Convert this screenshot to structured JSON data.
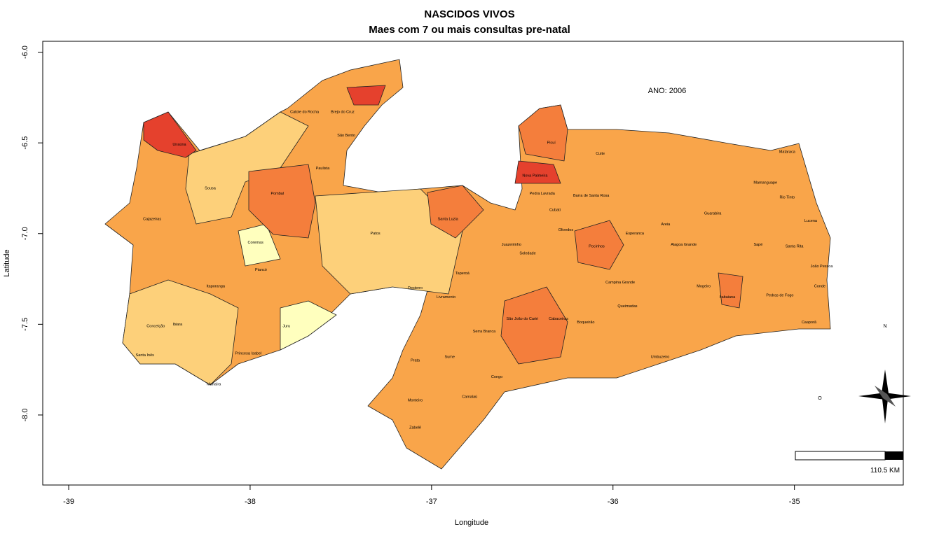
{
  "chart_data": {
    "type": "map",
    "title": "NASCIDOS VIVOS",
    "subtitle": "Maes com 7 ou mais consultas pre-natal",
    "x_label": "Longitude",
    "y_label": "Latitude",
    "xlim": [
      -39.143,
      -34.4
    ],
    "ylim": [
      -8.386,
      -5.94
    ],
    "xticks": [
      -39,
      -38,
      -37,
      -36,
      -35
    ],
    "yticks": [
      {
        "value": -6,
        "label": "-6.0"
      },
      {
        "value": -6.5,
        "label": "-6.5"
      },
      {
        "value": -7,
        "label": "-7.0"
      },
      {
        "value": -7.5,
        "label": "-7.5"
      },
      {
        "value": -8,
        "label": "-8.0"
      }
    ],
    "annotation": "ANO: 2006",
    "scale_label": "110.5 KM",
    "compass_n": "N",
    "compass_o": "O",
    "places": [
      {
        "name": "Sousa",
        "lon": -38.22,
        "lat": -6.75
      },
      {
        "name": "Cajazeiras",
        "lon": -38.54,
        "lat": -6.92
      },
      {
        "name": "Pombal",
        "lon": -37.85,
        "lat": -6.78
      },
      {
        "name": "Patos",
        "lon": -37.31,
        "lat": -7.0
      },
      {
        "name": "Catole do Rocha",
        "lon": -37.7,
        "lat": -6.33
      },
      {
        "name": "Paulista",
        "lon": -37.6,
        "lat": -6.64
      },
      {
        "name": "Princesa Isabel",
        "lon": -38.01,
        "lat": -7.66
      },
      {
        "name": "Itaporanga",
        "lon": -38.19,
        "lat": -7.29
      },
      {
        "name": "Conceição",
        "lon": -38.52,
        "lat": -7.51
      },
      {
        "name": "Piancó",
        "lon": -37.94,
        "lat": -7.2
      },
      {
        "name": "Juru",
        "lon": -37.8,
        "lat": -7.51
      },
      {
        "name": "Taperoá",
        "lon": -36.83,
        "lat": -7.22
      },
      {
        "name": "Monteiro",
        "lon": -37.09,
        "lat": -7.92
      },
      {
        "name": "Sume",
        "lon": -36.9,
        "lat": -7.68
      },
      {
        "name": "Serra Branca",
        "lon": -36.71,
        "lat": -7.54
      },
      {
        "name": "Congo",
        "lon": -36.64,
        "lat": -7.79
      },
      {
        "name": "Camalaú",
        "lon": -36.79,
        "lat": -7.9
      },
      {
        "name": "Soledade",
        "lon": -36.47,
        "lat": -7.11
      },
      {
        "name": "Pocinhos",
        "lon": -36.09,
        "lat": -7.07
      },
      {
        "name": "Cuite",
        "lon": -36.07,
        "lat": -6.56
      },
      {
        "name": "Picuí",
        "lon": -36.34,
        "lat": -6.5
      },
      {
        "name": "Nova Palmeira",
        "lon": -36.43,
        "lat": -6.68
      },
      {
        "name": "Campina Grande",
        "lon": -35.96,
        "lat": -7.27
      },
      {
        "name": "Queimadas",
        "lon": -35.92,
        "lat": -7.4
      },
      {
        "name": "Boqueirão",
        "lon": -36.15,
        "lat": -7.49
      },
      {
        "name": "Cabaceiras",
        "lon": -36.3,
        "lat": -7.47
      },
      {
        "name": "Esperanca",
        "lon": -35.88,
        "lat": -7.0
      },
      {
        "name": "Areia",
        "lon": -35.71,
        "lat": -6.95
      },
      {
        "name": "Guarabira",
        "lon": -35.45,
        "lat": -6.89
      },
      {
        "name": "Mamanguape",
        "lon": -35.16,
        "lat": -6.72
      },
      {
        "name": "Mataraca",
        "lon": -35.04,
        "lat": -6.55
      },
      {
        "name": "Rio Tinto",
        "lon": -35.04,
        "lat": -6.8
      },
      {
        "name": "Lucena",
        "lon": -34.91,
        "lat": -6.93
      },
      {
        "name": "Santa Rita",
        "lon": -35.0,
        "lat": -7.07
      },
      {
        "name": "João Pessoa",
        "lon": -34.85,
        "lat": -7.18
      },
      {
        "name": "Conde",
        "lon": -34.86,
        "lat": -7.29
      },
      {
        "name": "Caaporã",
        "lon": -34.92,
        "lat": -7.49
      },
      {
        "name": "Pedras de Fogo",
        "lon": -35.08,
        "lat": -7.34
      },
      {
        "name": "Itabaiana",
        "lon": -35.37,
        "lat": -7.35
      },
      {
        "name": "Mogeiro",
        "lon": -35.5,
        "lat": -7.29
      },
      {
        "name": "Umbuzeiro",
        "lon": -35.74,
        "lat": -7.68
      },
      {
        "name": "Sapé",
        "lon": -35.2,
        "lat": -7.06
      },
      {
        "name": "Alagoa Grande",
        "lon": -35.61,
        "lat": -7.06
      },
      {
        "name": "Barra de Santa Rosa",
        "lon": -36.12,
        "lat": -6.79
      },
      {
        "name": "Olivedos",
        "lon": -36.26,
        "lat": -6.98
      },
      {
        "name": "Livramento",
        "lon": -36.92,
        "lat": -7.35
      },
      {
        "name": "Brejo do Cruz",
        "lon": -37.49,
        "lat": -6.33
      },
      {
        "name": "São Bento",
        "lon": -37.47,
        "lat": -6.46
      },
      {
        "name": "Santa Luzia",
        "lon": -36.91,
        "lat": -6.92
      },
      {
        "name": "Coremas",
        "lon": -37.97,
        "lat": -7.05
      },
      {
        "name": "Desterro",
        "lon": -37.09,
        "lat": -7.3
      },
      {
        "name": "Juazeirinho",
        "lon": -36.56,
        "lat": -7.06
      },
      {
        "name": "São João do Cariri",
        "lon": -36.5,
        "lat": -7.47
      },
      {
        "name": "Prata",
        "lon": -37.09,
        "lat": -7.7
      },
      {
        "name": "Zabelê",
        "lon": -37.09,
        "lat": -8.07
      },
      {
        "name": "Manaíra",
        "lon": -38.2,
        "lat": -7.83
      },
      {
        "name": "Santa Inês",
        "lon": -38.58,
        "lat": -7.67
      },
      {
        "name": "Cubati",
        "lon": -36.32,
        "lat": -6.87
      },
      {
        "name": "Pedra Lavrada",
        "lon": -36.39,
        "lat": -6.78
      },
      {
        "name": "Uiraúna",
        "lon": -38.39,
        "lat": -6.51
      },
      {
        "name": "Ibiara",
        "lon": -38.4,
        "lat": -7.5
      }
    ]
  }
}
